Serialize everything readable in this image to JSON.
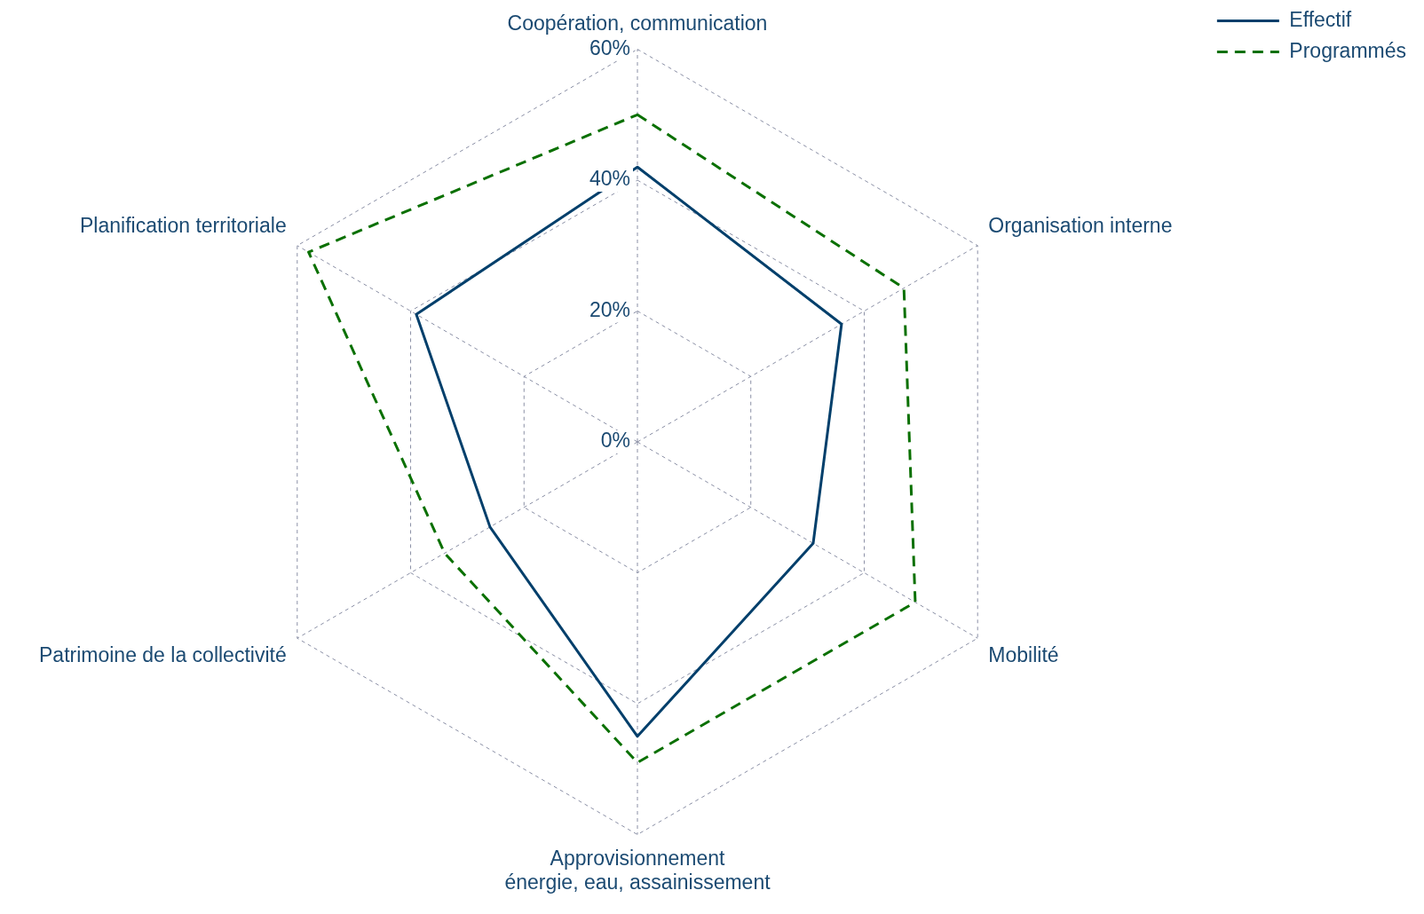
{
  "chart_data": {
    "type": "radar",
    "categories": [
      "Coopération, communication",
      "Organisation interne",
      "Mobilité",
      "Approvisionnement\nénergie, eau, assainissement",
      "Patrimoine de la collectivité",
      "Planification territoriale"
    ],
    "series": [
      {
        "name": "Effectif",
        "color": "#003f6b",
        "line_style": "solid",
        "values": [
          42,
          36,
          31,
          45,
          26,
          39
        ]
      },
      {
        "name": "Programmés",
        "color": "#0a7000",
        "line_style": "dashed",
        "values": [
          50,
          47,
          49,
          49,
          34,
          58
        ]
      }
    ],
    "ylim": [
      0,
      60
    ],
    "yticks": [
      {
        "value": 0,
        "label": "0%"
      },
      {
        "value": 20,
        "label": "20%"
      },
      {
        "value": 40,
        "label": "40%"
      },
      {
        "value": 60,
        "label": "60%"
      }
    ],
    "grid": true,
    "legend": "top right",
    "marker": "none"
  }
}
